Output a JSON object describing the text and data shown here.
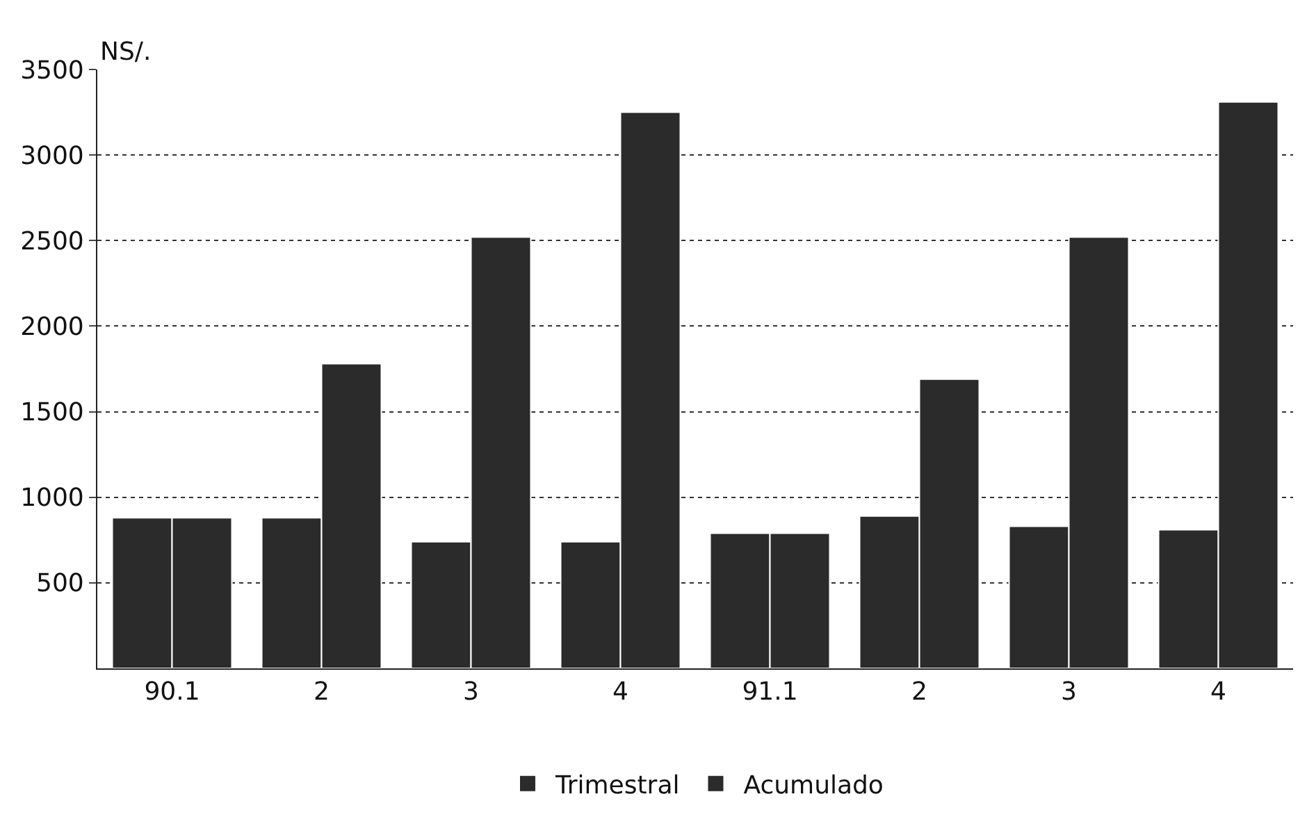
{
  "chart_data": {
    "type": "bar",
    "ylabel": "NS/.",
    "categories": [
      "90.1",
      "2",
      "3",
      "4",
      "91.1",
      "2",
      "3",
      "4"
    ],
    "series": [
      {
        "name": "Trimestral",
        "color": "#2b2b2b",
        "values": [
          880,
          880,
          740,
          740,
          790,
          890,
          830,
          810
        ]
      },
      {
        "name": "Acumulado",
        "color": "#2b2b2b",
        "values": [
          880,
          1780,
          2520,
          3250,
          790,
          1690,
          2520,
          3310
        ]
      }
    ],
    "ylim": [
      0,
      3500
    ],
    "yticks": [
      500,
      1000,
      1500,
      2000,
      2500,
      3000,
      3500
    ],
    "grid": "y",
    "legend": "bottom"
  }
}
